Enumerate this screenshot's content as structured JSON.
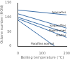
{
  "chart_data": {
    "type": "line",
    "x_label": "Boiling temperature (°C)",
    "y_label": "Octane number (RON)",
    "xlim": [
      0,
      200
    ],
    "xticks": [
      0,
      100,
      200
    ],
    "ylim": [
      0,
      150
    ],
    "yticks": [
      0,
      50,
      100,
      150
    ],
    "grid": false,
    "series": [
      {
        "name": "Aromatics",
        "color": "#3d6fa8",
        "x": [
          0,
          200
        ],
        "values": [
          125,
          108
        ]
      },
      {
        "name": "Isoparaffins",
        "color": "#3d6fa8",
        "x": [
          0,
          200
        ],
        "values": [
          112,
          62
        ]
      },
      {
        "name": "Naphthenes",
        "color": "#3d6fa8",
        "x": [
          0,
          200
        ],
        "values": [
          100,
          45
        ]
      },
      {
        "name": "Olefins",
        "color": "#3d6fa8",
        "x": [
          0,
          200
        ],
        "values": [
          95,
          30
        ]
      },
      {
        "name": "Paraffins normal",
        "color": "#3d6fa8",
        "x": [
          0,
          150
        ],
        "values": [
          90,
          0
        ]
      }
    ]
  }
}
